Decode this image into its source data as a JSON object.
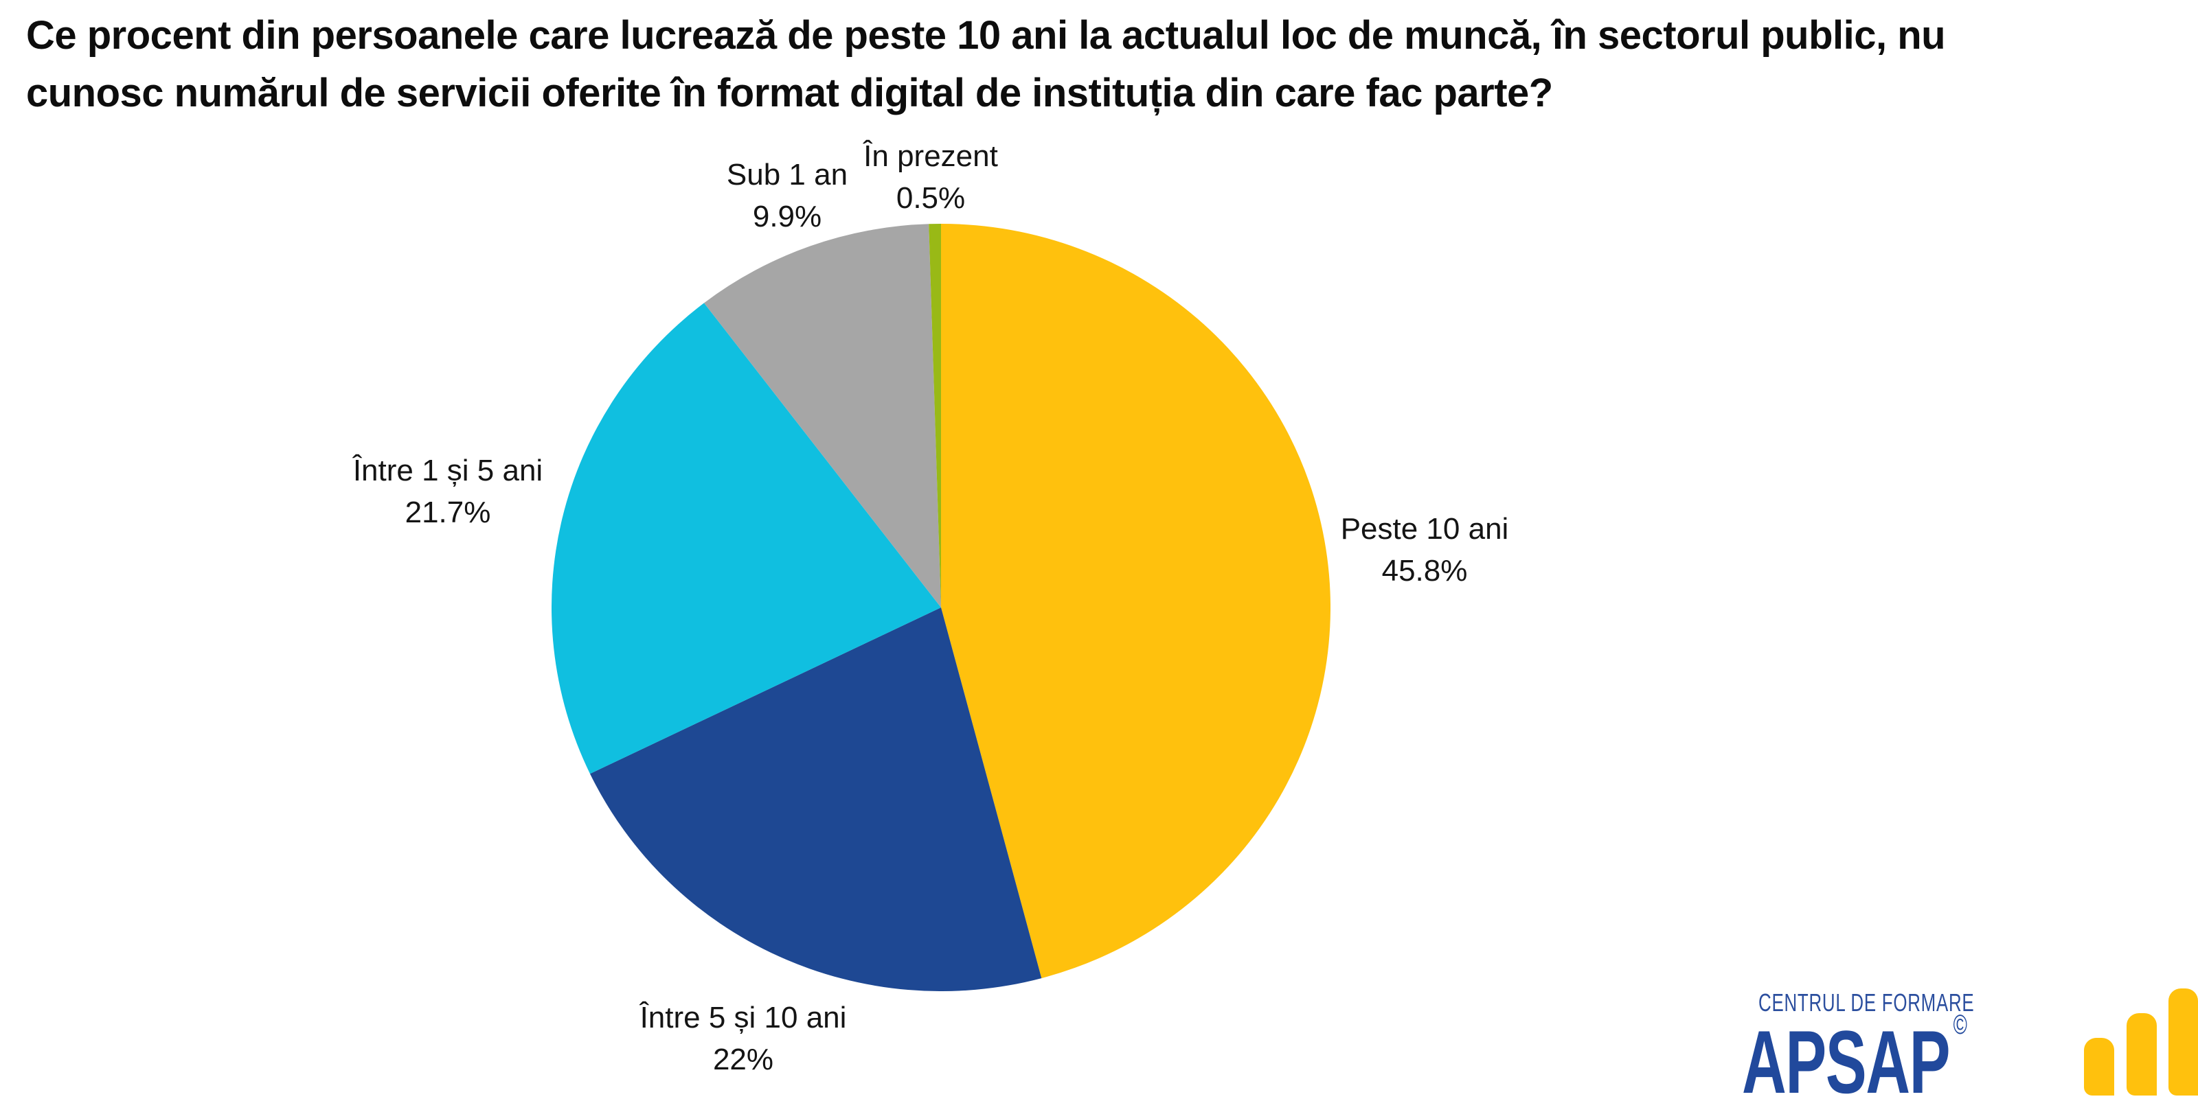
{
  "title": "Ce procent din persoanele care lucrează de peste 10 ani la actualul loc de muncă, în sectorul public, nu cunosc numărul de servicii oferite în format digital de instituția din care fac parte?",
  "title_lines": [
    "Ce procent din persoanele care lucrează de peste 10 ani la actualul loc de muncă, în sectorul public, nu",
    "cunosc numărul de servicii oferite în format digital de instituția din care fac parte?"
  ],
  "chart_data": {
    "type": "pie",
    "title": "Ce procent din persoanele care lucrează de peste 10 ani la actualul loc de muncă, în sectorul public, nu cunosc numărul de servicii oferite în format digital de instituția din care fac parte?",
    "unit": "percent",
    "start_angle_deg": 0,
    "direction": "clockwise",
    "legend": "none",
    "labels_position": "outside",
    "slices": [
      {
        "label": "Peste 10 ani",
        "value": 45.8,
        "pct_label": "45.8%",
        "color": "#FFC10D"
      },
      {
        "label": "Între 5 și 10 ani",
        "value": 22,
        "pct_label": "22%",
        "color": "#1E4893"
      },
      {
        "label": "Între 1 și 5 ani",
        "value": 21.7,
        "pct_label": "21.7%",
        "color": "#10BFE0"
      },
      {
        "label": "Sub 1 an",
        "value": 9.9,
        "pct_label": "9.9%",
        "color": "#A6A6A6"
      },
      {
        "label": "În prezent",
        "value": 0.5,
        "pct_label": "0.5%",
        "color": "#99B916"
      }
    ]
  },
  "logo": {
    "tagline": "CENTRUL DE FORMARE",
    "brand": "APSAP",
    "copyright_symbol": "©",
    "tagline_color": "#2B4E9E",
    "brand_color": "#21499C",
    "bar_icon_color": "#FFC10D",
    "bar_icon_bar_count": 3
  },
  "colors": {
    "background": "#FFFFFF",
    "title_text": "#0D0D0D",
    "label_text": "#141414"
  }
}
